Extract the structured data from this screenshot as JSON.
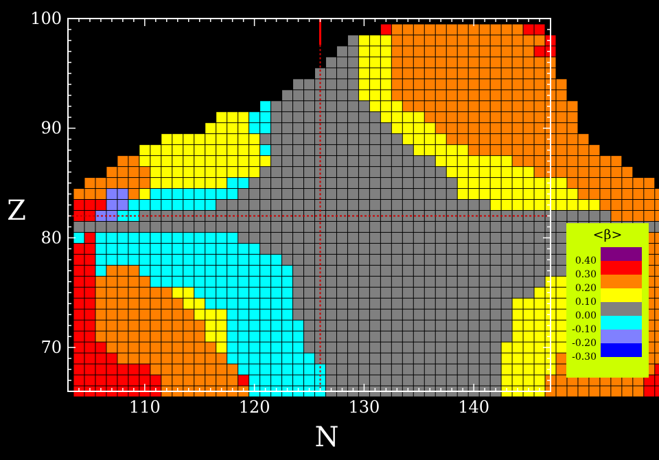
{
  "chart_data": {
    "type": "heatmap",
    "title": "",
    "xlabel": "N",
    "ylabel": "Z",
    "xlim": [
      103,
      147
    ],
    "ylim": [
      66,
      100
    ],
    "xticks": [
      110,
      120,
      130,
      140
    ],
    "yticks": [
      70,
      80,
      90,
      100
    ],
    "reference_lines": {
      "N": 126,
      "Z": 82
    },
    "legend": {
      "title": "<β>",
      "labels": [
        "0.40",
        "0.30",
        "0.20",
        "0.10",
        "0.00",
        "-0.10",
        "-0.20",
        "-0.30"
      ],
      "colors": [
        "#800080",
        "#ff0000",
        "#ff8000",
        "#ffff00",
        "#808080",
        "#00ffff",
        "#8080ff",
        "#0000ff"
      ],
      "placement": "right"
    },
    "color_classes": {
      "R": {
        "beta": 0.3,
        "color": "#ff0000"
      },
      "O": {
        "beta": 0.2,
        "color": "#ff8000"
      },
      "Y": {
        "beta": 0.1,
        "color": "#ffff00"
      },
      "G": {
        "beta": 0.0,
        "color": "#808080"
      },
      "C": {
        "beta": -0.1,
        "color": "#00ffff"
      },
      "L": {
        "beta": -0.2,
        "color": "#8080ff"
      }
    },
    "rows": [
      {
        "Z": 99,
        "n_start": 132,
        "cells": "ROOOOOOOOOOOORR"
      },
      {
        "Z": 98,
        "n_start": 129,
        "cells": "GYYYOOOOOOOOOOOOOOR"
      },
      {
        "Z": 97,
        "n_start": 128,
        "cells": "GGYYYOOOOOOOOOOOOORR"
      },
      {
        "Z": 96,
        "n_start": 127,
        "cells": "GGGYYYOOOOOOOOOOOOOOO"
      },
      {
        "Z": 95,
        "n_start": 126,
        "cells": "GGGGYYYOOOOOOOOOOOOOOO"
      },
      {
        "Z": 94,
        "n_start": 124,
        "cells": "GGGGGGYYYOOOOOOOOOOOOOOOO"
      },
      {
        "Z": 93,
        "n_start": 123,
        "cells": "GGGGGGGYYYOOOOOOOOOOOOOOOO"
      },
      {
        "Z": 92,
        "n_start": 121,
        "cells": "CGGGGGGGGGYYYOOOOOOOOOOOOOOOO"
      },
      {
        "Z": 91,
        "n_start": 117,
        "cells": "YYYCCGGGGGGGGGGYYYYOOOOOOOOOOOOOO"
      },
      {
        "Z": 90,
        "n_start": 116,
        "cells": "YYYYCCGGGGGGGGGGGYYYYOOOOOOOOOOOOO"
      },
      {
        "Z": 89,
        "n_start": 112,
        "cells": "YYYYYYYYYGGGGGGGGGGGGGYYYYOOOOOOOOOOOOO"
      },
      {
        "Z": 88,
        "n_start": 110,
        "cells": "YYYYYYYYYYYCGGGGGGGGGGGGGYYYYYOOOOOOOOOOOO"
      },
      {
        "Z": 87,
        "n_start": 108,
        "cells": "OOYYYYYYYYYYYYGGGGGGGGGGGGGGGYYYYYYYOOOOOOOOOO"
      },
      {
        "Z": 86,
        "n_start": 107,
        "cells": "OOOOYYYYYYYYYYGGGGGGGGGGGGGGGGGYYYYYYYYOOOOOOOOO"
      },
      {
        "Z": 85,
        "n_start": 105,
        "cells": "OOOOOOYYYYYYYCCGGGGGGGGGGGGGGGGGGGYYYYYYYYYYOOOOOOOO"
      },
      {
        "Z": 84,
        "n_start": 104,
        "cells": "OOOLLOYCCCCCCCCGGGGGGGGGGGGGGGGGGGGYYYYYYYYYYYOOOOOOOO"
      },
      {
        "Z": 83,
        "n_start": 104,
        "cells": "RRRLLCCCCCCCCGGGGGGGGGGGGGGGGGGGGGGGGGYYYYYYYYYYOOOOOO"
      },
      {
        "Z": 82,
        "n_start": 104,
        "cells": "RRLLCCGGGGGGGGGGGGGGGGGGGGGGGGGGGGGGGGGGGGGGGGGGGOOOOO"
      },
      {
        "Z": 81,
        "n_start": 104,
        "cells": "GGGGGGGGGGGGGGGGGGGGGGGGGGGGGGGGGGGGGGGGGGGGGGGGGGGGGG"
      },
      {
        "Z": 80,
        "n_start": 104,
        "cells": "CRCCCCCCCCCCCCCGGGGGGGGGGGGGGGGGGGGGGGGGGGGGGGGGGOOOOO"
      },
      {
        "Z": 79,
        "n_start": 104,
        "cells": "RRCCCCCCCCCCCCCCCGGGGGGGGGGGGGGGGGGGGGGGGGGGGGGGOOOOOO"
      },
      {
        "Z": 78,
        "n_start": 104,
        "cells": "RRCCCCCCCCCCCCCCCCCGGGGGGGGGGGGGGGGGGGGGGGGGGGGGOOOOOO"
      },
      {
        "Z": 77,
        "n_start": 104,
        "cells": "RRCOOOCCCCCCCCCCCCCCGGGGGGGGGGGGGGGGGGGGGGGGGGGYOOOOOO"
      },
      {
        "Z": 76,
        "n_start": 104,
        "cells": "RROOOOOCCCCCCCCCCCCCGGGGGGGGGGGGGGGGGGGGGGGYYYYOOOOOOO"
      },
      {
        "Z": 75,
        "n_start": 104,
        "cells": "RROOOOOOOYYCCCCCCCCCGGGGGGGGGGGGGGGGGGGGGGYYYYYOOOOOOO"
      },
      {
        "Z": 74,
        "n_start": 104,
        "cells": "RROOOOOOOOYYCCCCCCCCGGGGGGGGGGGGGGGGGGGGYYYYYYOOOOOOOO"
      },
      {
        "Z": 73,
        "n_start": 104,
        "cells": "RROOOOOOOOOYYYCCCCCCGGGGGGGGGGGGGGGGGGGGYYYYYYYOOOOOOO"
      },
      {
        "Z": 72,
        "n_start": 104,
        "cells": "RROOOOOOOOOOYYCCCCCCCGGGGGGGGGGGGGGGGGGGYYYYYYYOOOOOOO"
      },
      {
        "Z": 71,
        "n_start": 104,
        "cells": "RROOOOOOOOOOYYCCCCCCCGGGGGGGGGGGGGGGGGGGYYYYYYOOOOOOOO"
      },
      {
        "Z": 70,
        "n_start": 104,
        "cells": "RRROOOOOOOOOOYCCCCCCCGGGGGGGGGGGGGGGGGGYYYYYYOOOOOOOOO"
      },
      {
        "Z": 69,
        "n_start": 104,
        "cells": "RRRROOOOOOOOOOCCCCCCCCGGGGGGGGGGGGGGGGGYYYYYOOOOOOOOOO"
      },
      {
        "Z": 68,
        "n_start": 104,
        "cells": "RRRRRRROOOOOOOOCCCCCCCCGGGGGGGGGGGGGGGGYYYYYOOOOOOOOOR"
      },
      {
        "Z": 67,
        "n_start": 104,
        "cells": "RRRRRRRROOOOOOORCCCCCCCGGGGGGGGGGGGGGGGYYYYOOOOOOOOORR"
      },
      {
        "Z": 66,
        "n_start": 104,
        "cells": "RRRRRRRROOOOOOOOCCCCCCCGGGGGGGGGGGGGGGGYYYYOOOOOOOOORR"
      }
    ]
  }
}
